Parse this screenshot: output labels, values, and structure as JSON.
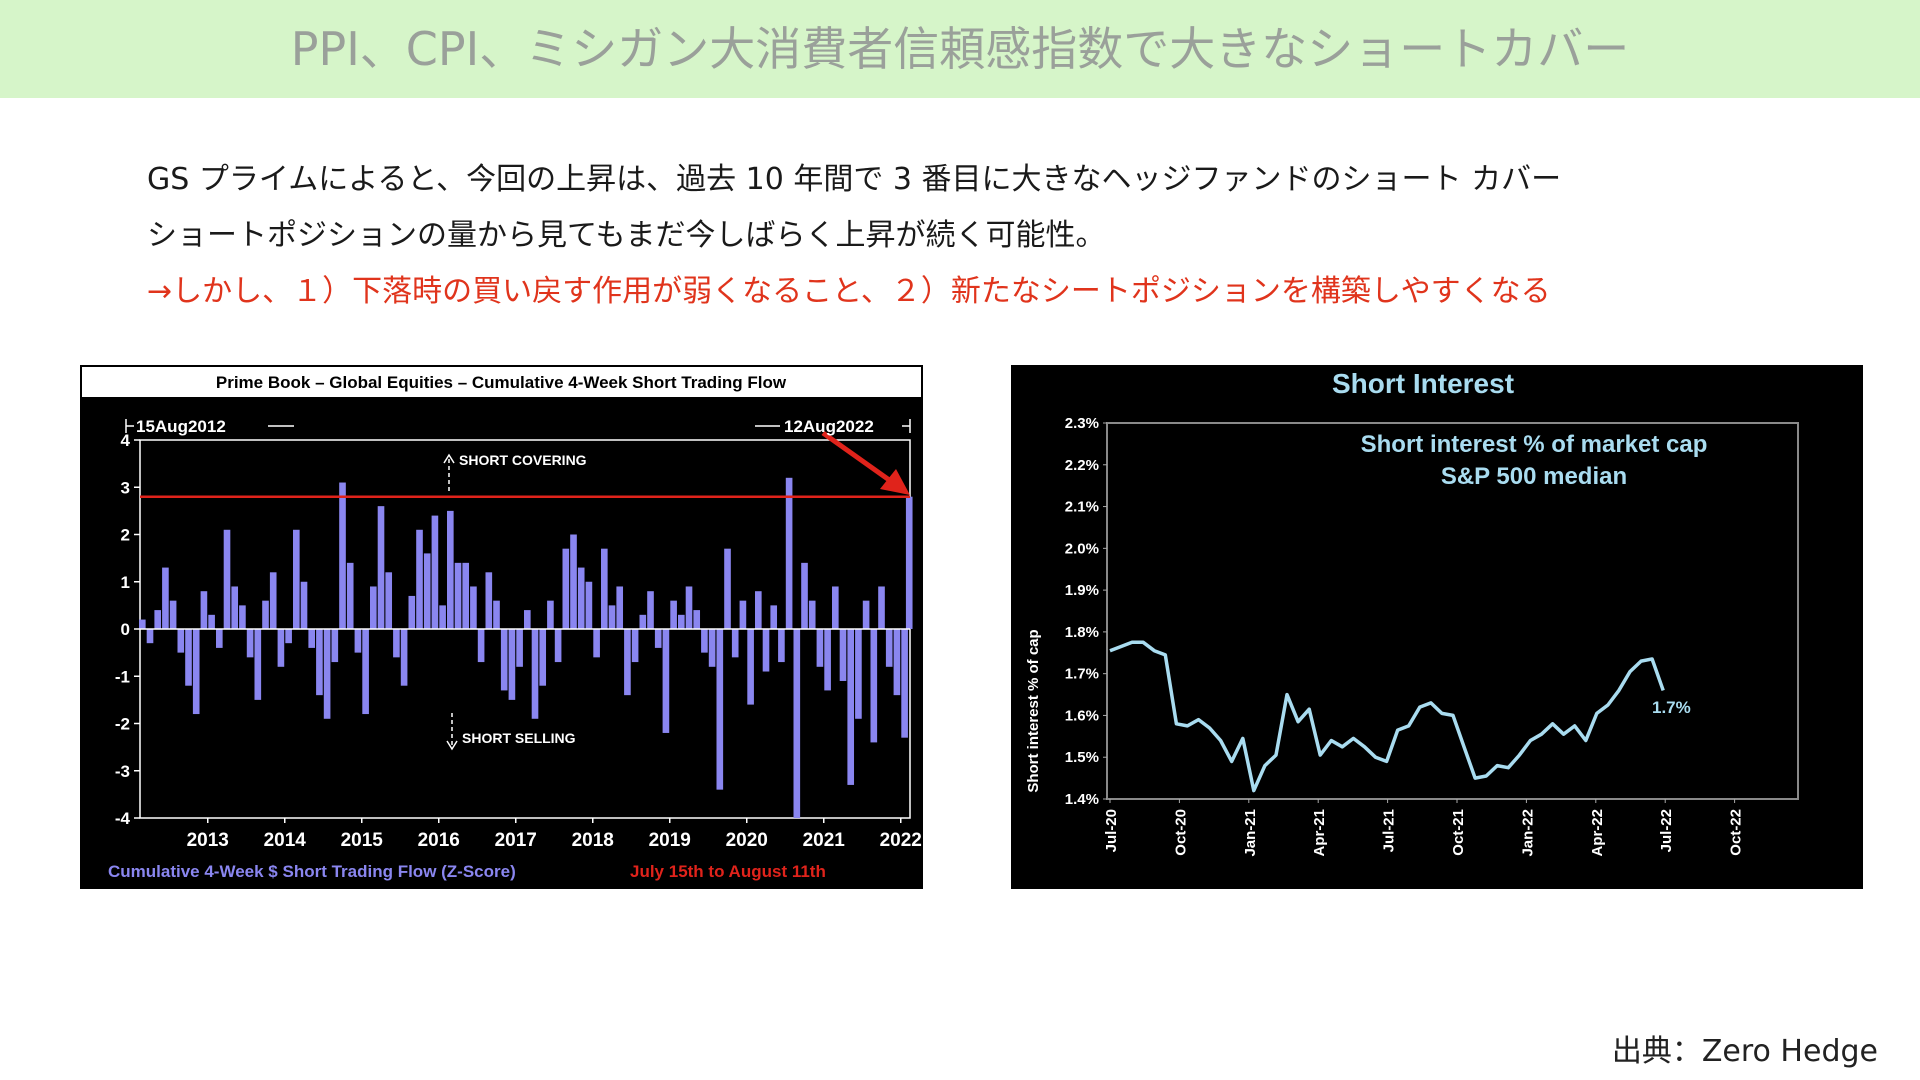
{
  "header": {
    "title": "PPI、CPI、ミシガン大消費者信頼感指数で大きなショートカバー"
  },
  "body": {
    "line1": "GS プライムによると、今回の上昇は、過去 10 年間で 3 番目に大きなヘッジファンドのショート カバー",
    "line2": "ショートポジションの量から見てもまだ今しばらく上昇が続く可能性。",
    "line3": "→しかし、１）下落時の買い戻す作用が弱くなること、２）新たなシートポジションを構築しやすくなる"
  },
  "source": "出典：Zero Hedge",
  "colors": {
    "header_bg": "#d6f5c9",
    "bar": "#8a86f0",
    "threshold": "#e0231b",
    "line": "#a9dcf0",
    "red_text": "#e0341c"
  },
  "chart_data": [
    {
      "type": "bar",
      "title": "Prime Book – Global Equities – Cumulative 4-Week Short Trading Flow",
      "start_label": "15Aug2012",
      "end_label": "12Aug2022",
      "annotation_up": "SHORT COVERING",
      "annotation_down": "SHORT SELLING",
      "legend_series": "Cumulative 4-Week $ Short Trading Flow (Z-Score)",
      "legend_highlight": "July 15th to August 11th",
      "ylim": [
        -4,
        4
      ],
      "yticks": [
        4,
        3,
        2,
        1,
        0,
        -1,
        -2,
        -3,
        -4
      ],
      "xticks": [
        "2013",
        "2014",
        "2015",
        "2016",
        "2017",
        "2018",
        "2019",
        "2020",
        "2021",
        "2022"
      ],
      "xrange": [
        2012.62,
        2022.62
      ],
      "threshold": 2.8,
      "points": [
        [
          2012.65,
          0.2
        ],
        [
          2012.75,
          -0.3
        ],
        [
          2012.85,
          0.4
        ],
        [
          2012.95,
          1.3
        ],
        [
          2013.05,
          0.6
        ],
        [
          2013.15,
          -0.5
        ],
        [
          2013.25,
          -1.2
        ],
        [
          2013.35,
          -1.8
        ],
        [
          2013.45,
          0.8
        ],
        [
          2013.55,
          0.3
        ],
        [
          2013.65,
          -0.4
        ],
        [
          2013.75,
          2.1
        ],
        [
          2013.85,
          0.9
        ],
        [
          2013.95,
          0.5
        ],
        [
          2014.05,
          -0.6
        ],
        [
          2014.15,
          -1.5
        ],
        [
          2014.25,
          0.6
        ],
        [
          2014.35,
          1.2
        ],
        [
          2014.45,
          -0.8
        ],
        [
          2014.55,
          -0.3
        ],
        [
          2014.65,
          2.1
        ],
        [
          2014.75,
          1.0
        ],
        [
          2014.85,
          -0.4
        ],
        [
          2014.95,
          -1.4
        ],
        [
          2015.05,
          -1.9
        ],
        [
          2015.15,
          -0.7
        ],
        [
          2015.25,
          3.1
        ],
        [
          2015.35,
          1.4
        ],
        [
          2015.45,
          -0.5
        ],
        [
          2015.55,
          -1.8
        ],
        [
          2015.65,
          0.9
        ],
        [
          2015.75,
          2.6
        ],
        [
          2015.85,
          1.2
        ],
        [
          2015.95,
          -0.6
        ],
        [
          2016.05,
          -1.2
        ],
        [
          2016.15,
          0.7
        ],
        [
          2016.25,
          2.1
        ],
        [
          2016.35,
          1.6
        ],
        [
          2016.45,
          2.4
        ],
        [
          2016.55,
          0.5
        ],
        [
          2016.65,
          2.5
        ],
        [
          2016.75,
          1.4
        ],
        [
          2016.85,
          1.4
        ],
        [
          2016.95,
          0.9
        ],
        [
          2017.05,
          -0.7
        ],
        [
          2017.15,
          1.2
        ],
        [
          2017.25,
          0.6
        ],
        [
          2017.35,
          -1.3
        ],
        [
          2017.45,
          -1.5
        ],
        [
          2017.55,
          -0.8
        ],
        [
          2017.65,
          0.4
        ],
        [
          2017.75,
          -1.9
        ],
        [
          2017.85,
          -1.2
        ],
        [
          2017.95,
          0.6
        ],
        [
          2018.05,
          -0.7
        ],
        [
          2018.15,
          1.7
        ],
        [
          2018.25,
          2.0
        ],
        [
          2018.35,
          1.3
        ],
        [
          2018.45,
          1.0
        ],
        [
          2018.55,
          -0.6
        ],
        [
          2018.65,
          1.7
        ],
        [
          2018.75,
          0.5
        ],
        [
          2018.85,
          0.9
        ],
        [
          2018.95,
          -1.4
        ],
        [
          2019.05,
          -0.7
        ],
        [
          2019.15,
          0.3
        ],
        [
          2019.25,
          0.8
        ],
        [
          2019.35,
          -0.4
        ],
        [
          2019.45,
          -2.2
        ],
        [
          2019.55,
          0.6
        ],
        [
          2019.65,
          0.3
        ],
        [
          2019.75,
          0.9
        ],
        [
          2019.85,
          0.4
        ],
        [
          2019.95,
          -0.5
        ],
        [
          2020.05,
          -0.8
        ],
        [
          2020.15,
          -3.4
        ],
        [
          2020.25,
          1.7
        ],
        [
          2020.35,
          -0.6
        ],
        [
          2020.45,
          0.6
        ],
        [
          2020.55,
          -1.6
        ],
        [
          2020.65,
          0.8
        ],
        [
          2020.75,
          -0.9
        ],
        [
          2020.85,
          0.5
        ],
        [
          2020.95,
          -0.7
        ],
        [
          2021.05,
          3.2
        ],
        [
          2021.15,
          -4.0
        ],
        [
          2021.25,
          1.4
        ],
        [
          2021.35,
          0.6
        ],
        [
          2021.45,
          -0.8
        ],
        [
          2021.55,
          -1.3
        ],
        [
          2021.65,
          0.9
        ],
        [
          2021.75,
          -1.1
        ],
        [
          2021.85,
          -3.3
        ],
        [
          2021.95,
          -1.9
        ],
        [
          2022.05,
          0.6
        ],
        [
          2022.15,
          -2.4
        ],
        [
          2022.25,
          0.9
        ],
        [
          2022.35,
          -0.8
        ],
        [
          2022.45,
          -1.4
        ],
        [
          2022.55,
          -2.3
        ],
        [
          2022.61,
          2.8
        ]
      ]
    },
    {
      "type": "line",
      "title": "Short Interest",
      "inner_title": "Short interest % of market cap",
      "inner_subtitle": "S&P 500 median",
      "ylabel": "Short interest % of cap",
      "ylim": [
        1.4,
        2.3
      ],
      "yticks": [
        "2.3%",
        "2.2%",
        "2.1%",
        "2.0%",
        "1.9%",
        "1.8%",
        "1.7%",
        "1.6%",
        "1.5%",
        "1.4%"
      ],
      "xticks": [
        "Jul-20",
        "Oct-20",
        "Jan-21",
        "Apr-21",
        "Jul-21",
        "Oct-21",
        "Jan-22",
        "Apr-22",
        "Jul-22",
        "Oct-22"
      ],
      "end_label": "1.7%",
      "values": [
        1.755,
        1.765,
        1.775,
        1.775,
        1.755,
        1.745,
        1.58,
        1.575,
        1.59,
        1.57,
        1.54,
        1.49,
        1.545,
        1.42,
        1.48,
        1.505,
        1.65,
        1.585,
        1.615,
        1.505,
        1.54,
        1.525,
        1.545,
        1.525,
        1.5,
        1.49,
        1.565,
        1.575,
        1.62,
        1.63,
        1.605,
        1.6,
        1.525,
        1.45,
        1.455,
        1.48,
        1.475,
        1.505,
        1.54,
        1.555,
        1.58,
        1.555,
        1.575,
        1.54,
        1.605,
        1.625,
        1.66,
        1.705,
        1.73,
        1.735,
        1.66
      ]
    }
  ]
}
